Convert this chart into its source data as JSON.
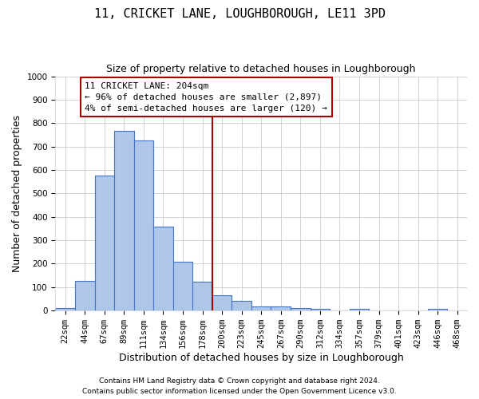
{
  "title": "11, CRICKET LANE, LOUGHBOROUGH, LE11 3PD",
  "subtitle": "Size of property relative to detached houses in Loughborough",
  "xlabel": "Distribution of detached houses by size in Loughborough",
  "ylabel": "Number of detached properties",
  "footnote1": "Contains HM Land Registry data © Crown copyright and database right 2024.",
  "footnote2": "Contains public sector information licensed under the Open Government Licence v3.0.",
  "bar_labels": [
    "22sqm",
    "44sqm",
    "67sqm",
    "89sqm",
    "111sqm",
    "134sqm",
    "156sqm",
    "178sqm",
    "200sqm",
    "223sqm",
    "245sqm",
    "267sqm",
    "290sqm",
    "312sqm",
    "334sqm",
    "357sqm",
    "379sqm",
    "401sqm",
    "423sqm",
    "446sqm",
    "468sqm"
  ],
  "bar_heights": [
    12,
    127,
    577,
    768,
    727,
    357,
    210,
    122,
    65,
    40,
    17,
    17,
    12,
    8,
    0,
    8,
    0,
    0,
    0,
    8,
    0
  ],
  "bar_color": "#aec6e8",
  "bar_edge_color": "#4472c4",
  "property_line_index": 8,
  "property_line_label": "11 CRICKET LANE: 204sqm",
  "property_line_smaller": "← 96% of detached houses are smaller (2,897)",
  "property_line_larger": "4% of semi-detached houses are larger (120) →",
  "annotation_box_color": "#aa0000",
  "ylim": [
    0,
    1000
  ],
  "yticks": [
    0,
    100,
    200,
    300,
    400,
    500,
    600,
    700,
    800,
    900,
    1000
  ],
  "grid_color": "#cccccc",
  "background_color": "#ffffff",
  "title_fontsize": 11,
  "subtitle_fontsize": 9,
  "ylabel_fontsize": 9,
  "xlabel_fontsize": 9,
  "tick_fontsize": 7.5,
  "annotation_fontsize": 8,
  "footnote_fontsize": 6.5
}
